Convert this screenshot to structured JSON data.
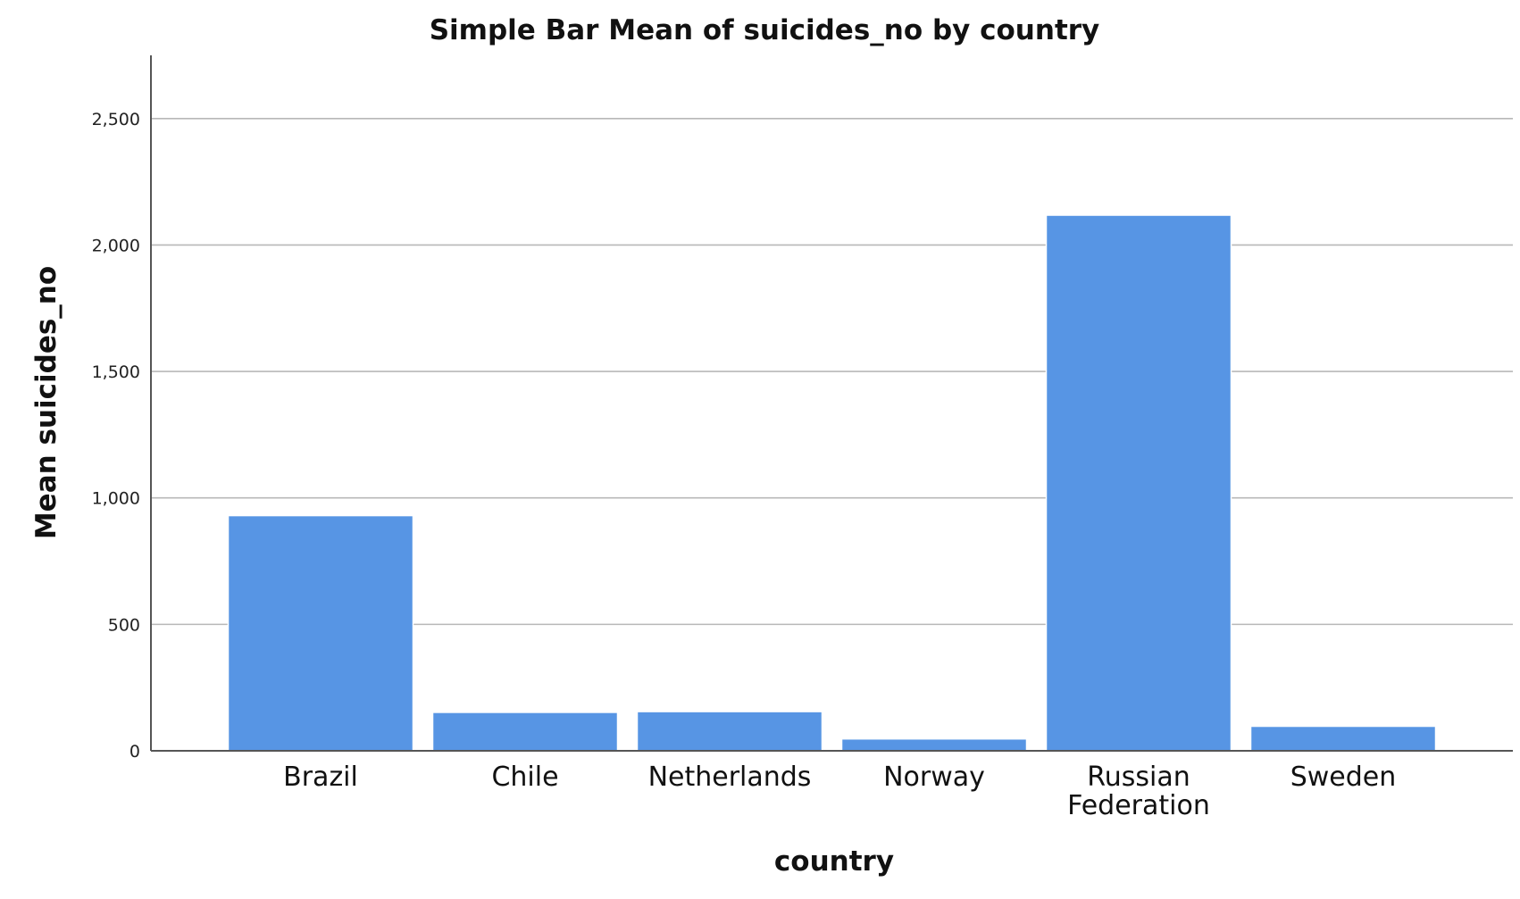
{
  "chart_data": {
    "type": "bar",
    "title": "Simple Bar Mean of suicides_no by country",
    "xlabel": "country",
    "ylabel": "Mean suicides_no",
    "categories": [
      "Brazil",
      "Chile",
      "Netherlands",
      "Norway",
      "Russian Federation",
      "Sweden"
    ],
    "category_lines": [
      [
        "Brazil"
      ],
      [
        "Chile"
      ],
      [
        "Netherlands"
      ],
      [
        "Norway"
      ],
      [
        "Russian",
        "Federation"
      ],
      [
        "Sweden"
      ]
    ],
    "values": [
      930,
      152,
      155,
      47,
      2118,
      97
    ],
    "ylim": [
      0,
      2750
    ],
    "yticks": [
      0,
      500,
      1000,
      1500,
      2000,
      2500
    ],
    "ytick_labels": [
      "0",
      "500",
      "1,000",
      "1,500",
      "2,000",
      "2,500"
    ],
    "grid": true,
    "bar_color": "#5795e4"
  }
}
